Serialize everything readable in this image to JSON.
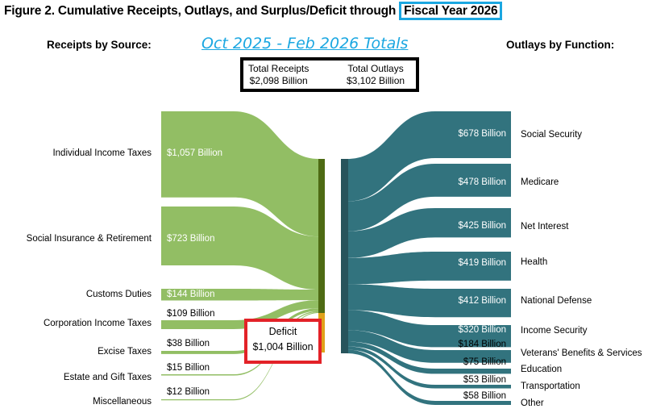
{
  "title": {
    "prefix": "Figure 2. Cumulative Receipts, Outlays, and Surplus/Deficit through",
    "highlight": "Fiscal Year 2026"
  },
  "receipts_header": "Receipts by Source:",
  "outlays_header": "Outlays by Function:",
  "period": "Oct 2025 - Feb 2026 Totals",
  "totals": {
    "receipts_label": "Total Receipts",
    "receipts_value": "$2,098 Billion",
    "outlays_label": "Total Outlays",
    "outlays_value": "$3,102 Billion"
  },
  "deficit": {
    "label": "Deficit",
    "value": "$1,004 Billion"
  },
  "colors": {
    "receipts": "#8cbb5c",
    "receipts_bar": "#4e6b14",
    "deficit_bar": "#e0a21a",
    "outlays": "#2b6e7a",
    "outlays_bar": "#27545c",
    "fy_highlight": "#1ba7e1",
    "deficit_box": "#e32228"
  },
  "chart_data": {
    "type": "sankey",
    "units": "Billion",
    "receipts": [
      {
        "name": "Individual Income Taxes",
        "value": 1057,
        "label": "$1,057 Billion"
      },
      {
        "name": "Social Insurance & Retirement",
        "value": 723,
        "label": "$723 Billion"
      },
      {
        "name": "Customs Duties",
        "value": 144,
        "label": "$144 Billion"
      },
      {
        "name": "Corporation Income Taxes",
        "value": 109,
        "label": "$109 Billion"
      },
      {
        "name": "Excise Taxes",
        "value": 38,
        "label": "$38 Billion"
      },
      {
        "name": "Estate and Gift Taxes",
        "value": 15,
        "label": "$15 Billion"
      },
      {
        "name": "Miscellaneous",
        "value": 12,
        "label": "$12 Billion"
      }
    ],
    "deficit": 1004,
    "outlays": [
      {
        "name": "Social Security",
        "value": 678,
        "label": "$678 Billion"
      },
      {
        "name": "Medicare",
        "value": 478,
        "label": "$478 Billion"
      },
      {
        "name": "Net Interest",
        "value": 425,
        "label": "$425 Billion"
      },
      {
        "name": "Health",
        "value": 419,
        "label": "$419 Billion"
      },
      {
        "name": "National Defense",
        "value": 412,
        "label": "$412 Billion"
      },
      {
        "name": "Income Security",
        "value": 320,
        "label": "$320 Billion"
      },
      {
        "name": "Veterans' Benefits & Services",
        "value": 184,
        "label": "$184 Billion"
      },
      {
        "name": "Education",
        "value": 75,
        "label": "$75 Billion"
      },
      {
        "name": "Transportation",
        "value": 53,
        "label": "$53 Billion"
      },
      {
        "name": "Other",
        "value": 58,
        "label": "$58 Billion"
      }
    ]
  }
}
